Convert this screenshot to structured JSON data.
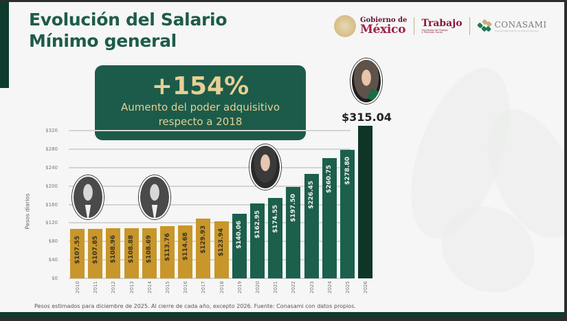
{
  "header": {
    "title_line1": "Evolución del Salario",
    "title_line2": "Mínimo general"
  },
  "logos": {
    "gobierno_line1": "Gobierno de",
    "gobierno_line2": "México",
    "trabajo_title": "Trabajo",
    "trabajo_subtitle": "Secretaría del Trabajo y Previsión Social",
    "conasami_title": "CONASAMI",
    "conasami_subtitle": "Comisión Nacional de los Salarios Mínimos"
  },
  "highlight": {
    "value": "+154%",
    "text_line1": "Aumento del poder adquisitivo",
    "text_line2": "respecto a 2018"
  },
  "top_value_label": "$315.04",
  "footnote": "Pesos estimados para diciembre de 2025. Al cierre de cada año, excepto 2026. Fuente: Conasami con datos propios.",
  "colors": {
    "primary_green": "#1c5f4c",
    "dark_green": "#0f3526",
    "gold": "#c8962a",
    "highlight_text": "#e6d094"
  },
  "chart_data": {
    "type": "bar",
    "title": "Evolución del Salario Mínimo general",
    "xlabel": "",
    "ylabel": "Pesos diarios",
    "ylim": [
      0,
      320
    ],
    "yticks": [
      "$0",
      "$40",
      "$80",
      "$120",
      "$160",
      "$200",
      "$240",
      "$280",
      "$320"
    ],
    "grid": true,
    "categories": [
      "2010",
      "2011",
      "2012",
      "2013",
      "2014",
      "2015",
      "2016",
      "2017",
      "2018",
      "2019",
      "2020",
      "2021",
      "2022",
      "2023",
      "2024",
      "2025",
      "2026"
    ],
    "values": [
      107.55,
      107.85,
      108.96,
      108.88,
      108.69,
      113.76,
      114.68,
      129.93,
      123.94,
      140.06,
      162.95,
      174.55,
      197.5,
      226.45,
      260.75,
      278.8,
      315.04
    ],
    "labels": [
      "$107.55",
      "$107.85",
      "$108.96",
      "$108.88",
      "$108.69",
      "$113.76",
      "$114.68",
      "$129.93",
      "$123.94",
      "$140.06",
      "$162.95",
      "$174.55",
      "$197.50",
      "$226.45",
      "$260.75",
      "$278.80",
      ""
    ],
    "bar_colors": [
      "gold",
      "gold",
      "gold",
      "gold",
      "gold",
      "gold",
      "gold",
      "gold",
      "gold",
      "green",
      "green",
      "green",
      "green",
      "green",
      "green",
      "green",
      "dark"
    ],
    "annotations": [
      "+154% Aumento del poder adquisitivo respecto a 2018",
      "$315.04"
    ]
  }
}
